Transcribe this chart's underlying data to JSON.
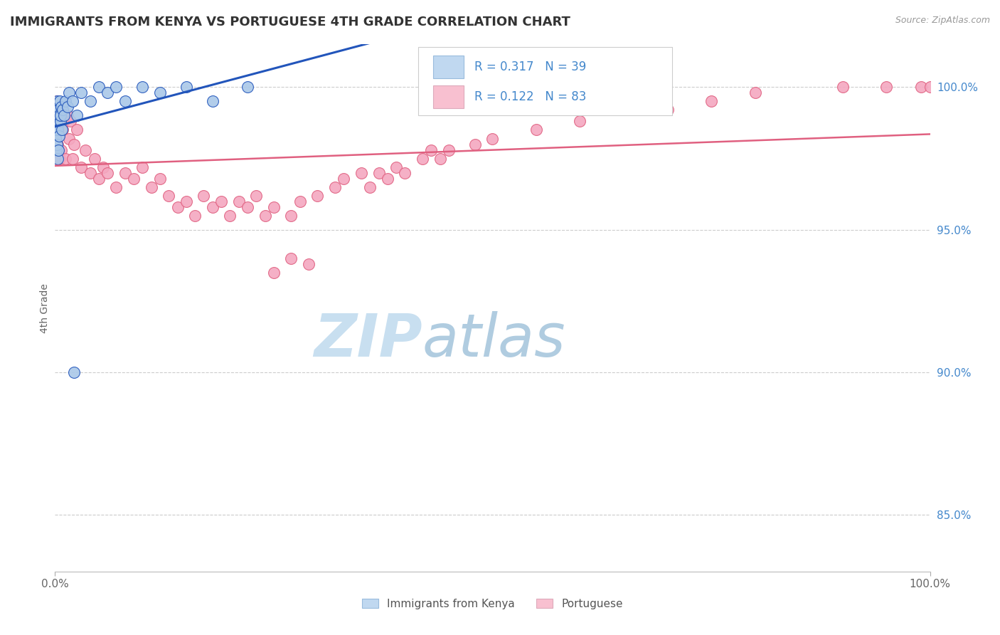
{
  "title": "IMMIGRANTS FROM KENYA VS PORTUGUESE 4TH GRADE CORRELATION CHART",
  "source_text": "Source: ZipAtlas.com",
  "ylabel": "4th Grade",
  "legend1_label": "Immigrants from Kenya",
  "legend2_label": "Portuguese",
  "r1": 0.317,
  "n1": 39,
  "r2": 0.122,
  "n2": 83,
  "xlim": [
    0.0,
    100.0
  ],
  "ylim": [
    83.0,
    101.5
  ],
  "yticks": [
    85.0,
    90.0,
    95.0,
    100.0
  ],
  "ytick_labels": [
    "85.0%",
    "90.0%",
    "95.0%",
    "100.0%"
  ],
  "xtick_labels": [
    "0.0%",
    "100.0%"
  ],
  "color_kenya": "#aac8e8",
  "color_portuguese": "#f4a8c0",
  "line_color_kenya": "#2255bb",
  "line_color_portuguese": "#e06080",
  "legend_box_color_kenya": "#c0d8f0",
  "legend_box_color_portuguese": "#f8c0d0",
  "watermark_zip": "ZIP",
  "watermark_atlas": "atlas",
  "watermark_color_zip": "#c8dff0",
  "watermark_color_atlas": "#b0cce0",
  "title_color": "#333333",
  "title_fontsize": 13,
  "tick_color_right": "#4488cc",
  "scatter_size": 130,
  "kenya_x": [
    0.05,
    0.08,
    0.1,
    0.12,
    0.15,
    0.18,
    0.2,
    0.22,
    0.25,
    0.28,
    0.3,
    0.35,
    0.4,
    0.45,
    0.5,
    0.55,
    0.6,
    0.65,
    0.7,
    0.8,
    0.9,
    1.0,
    1.2,
    1.4,
    1.6,
    2.0,
    2.5,
    3.0,
    4.0,
    5.0,
    6.0,
    7.0,
    8.0,
    10.0,
    12.0,
    15.0,
    18.0,
    22.0,
    2.2
  ],
  "kenya_y": [
    98.2,
    99.0,
    98.5,
    99.2,
    97.8,
    98.8,
    99.5,
    98.0,
    99.0,
    97.5,
    98.5,
    99.2,
    97.8,
    99.0,
    98.3,
    99.5,
    98.8,
    99.0,
    99.3,
    98.5,
    99.2,
    99.0,
    99.5,
    99.3,
    99.8,
    99.5,
    99.0,
    99.8,
    99.5,
    100.0,
    99.8,
    100.0,
    99.5,
    100.0,
    99.8,
    100.0,
    99.5,
    100.0,
    90.0
  ],
  "portuguese_x": [
    0.05,
    0.08,
    0.1,
    0.12,
    0.15,
    0.18,
    0.2,
    0.22,
    0.25,
    0.3,
    0.35,
    0.4,
    0.45,
    0.5,
    0.55,
    0.6,
    0.65,
    0.7,
    0.8,
    0.9,
    1.0,
    1.2,
    1.4,
    1.6,
    1.8,
    2.0,
    2.2,
    2.5,
    3.0,
    3.5,
    4.0,
    4.5,
    5.0,
    5.5,
    6.0,
    7.0,
    8.0,
    9.0,
    10.0,
    11.0,
    12.0,
    13.0,
    14.0,
    15.0,
    16.0,
    17.0,
    18.0,
    19.0,
    20.0,
    21.0,
    22.0,
    23.0,
    24.0,
    25.0,
    27.0,
    28.0,
    30.0,
    32.0,
    33.0,
    35.0,
    36.0,
    37.0,
    38.0,
    39.0,
    40.0,
    42.0,
    43.0,
    44.0,
    45.0,
    48.0,
    50.0,
    55.0,
    60.0,
    70.0,
    75.0,
    80.0,
    90.0,
    95.0,
    99.0,
    100.0,
    25.0,
    27.0,
    29.0
  ],
  "portuguese_y": [
    98.5,
    99.2,
    97.8,
    99.0,
    98.2,
    99.5,
    97.5,
    98.8,
    99.0,
    98.0,
    99.2,
    97.8,
    98.5,
    99.0,
    97.5,
    98.8,
    99.2,
    97.8,
    99.0,
    98.5,
    98.8,
    97.5,
    99.0,
    98.2,
    98.8,
    97.5,
    98.0,
    98.5,
    97.2,
    97.8,
    97.0,
    97.5,
    96.8,
    97.2,
    97.0,
    96.5,
    97.0,
    96.8,
    97.2,
    96.5,
    96.8,
    96.2,
    95.8,
    96.0,
    95.5,
    96.2,
    95.8,
    96.0,
    95.5,
    96.0,
    95.8,
    96.2,
    95.5,
    95.8,
    95.5,
    96.0,
    96.2,
    96.5,
    96.8,
    97.0,
    96.5,
    97.0,
    96.8,
    97.2,
    97.0,
    97.5,
    97.8,
    97.5,
    97.8,
    98.0,
    98.2,
    98.5,
    98.8,
    99.2,
    99.5,
    99.8,
    100.0,
    100.0,
    100.0,
    100.0,
    93.5,
    94.0,
    93.8
  ]
}
